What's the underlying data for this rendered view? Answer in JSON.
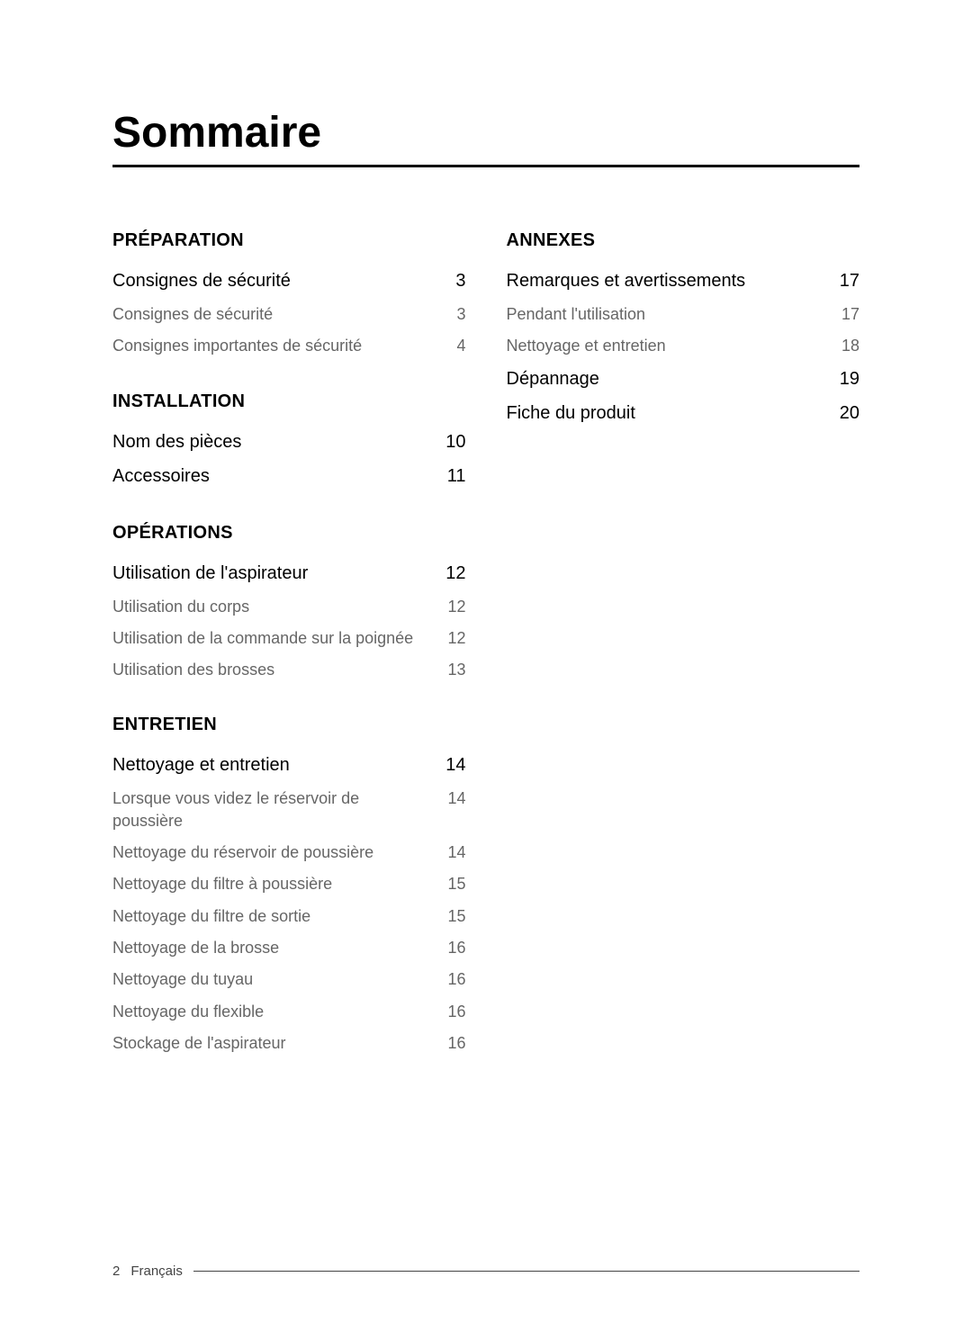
{
  "title": "Sommaire",
  "footer": {
    "pageNumber": "2",
    "language": "Français"
  },
  "colors": {
    "text_primary": "#000000",
    "text_secondary": "#666666",
    "rule": "#000000",
    "background": "#ffffff"
  },
  "typography": {
    "title_fontsize": 48,
    "heading_fontsize": 20,
    "main_entry_fontsize": 20,
    "sub_entry_fontsize": 18,
    "footer_fontsize": 15
  },
  "leftColumn": [
    {
      "heading": "PRÉPARATION",
      "entries": [
        {
          "label": "Consignes de sécurité",
          "page": "3",
          "type": "main"
        },
        {
          "label": "Consignes de sécurité",
          "page": "3",
          "type": "sub"
        },
        {
          "label": "Consignes importantes de sécurité",
          "page": "4",
          "type": "sub"
        }
      ]
    },
    {
      "heading": "INSTALLATION",
      "entries": [
        {
          "label": "Nom des pièces",
          "page": "10",
          "type": "main"
        },
        {
          "label": "Accessoires",
          "page": "11",
          "type": "main"
        }
      ]
    },
    {
      "heading": "OPÉRATIONS",
      "entries": [
        {
          "label": "Utilisation de l'aspirateur",
          "page": "12",
          "type": "main"
        },
        {
          "label": "Utilisation du corps",
          "page": "12",
          "type": "sub"
        },
        {
          "label": "Utilisation de la commande sur la poignée",
          "page": "12",
          "type": "sub"
        },
        {
          "label": "Utilisation des brosses",
          "page": "13",
          "type": "sub"
        }
      ]
    },
    {
      "heading": "ENTRETIEN",
      "entries": [
        {
          "label": "Nettoyage et entretien",
          "page": "14",
          "type": "main"
        },
        {
          "label": "Lorsque vous videz le réservoir de poussière",
          "page": "14",
          "type": "sub"
        },
        {
          "label": "Nettoyage du réservoir de poussière",
          "page": "14",
          "type": "sub"
        },
        {
          "label": "Nettoyage du filtre à poussière",
          "page": "15",
          "type": "sub"
        },
        {
          "label": "Nettoyage du filtre de sortie",
          "page": "15",
          "type": "sub"
        },
        {
          "label": "Nettoyage de la brosse",
          "page": "16",
          "type": "sub"
        },
        {
          "label": "Nettoyage du tuyau",
          "page": "16",
          "type": "sub"
        },
        {
          "label": "Nettoyage du flexible",
          "page": "16",
          "type": "sub"
        },
        {
          "label": "Stockage de l'aspirateur",
          "page": "16",
          "type": "sub"
        }
      ]
    }
  ],
  "rightColumn": [
    {
      "heading": "ANNEXES",
      "entries": [
        {
          "label": "Remarques et avertissements",
          "page": "17",
          "type": "main"
        },
        {
          "label": "Pendant l'utilisation",
          "page": "17",
          "type": "sub"
        },
        {
          "label": "Nettoyage et entretien",
          "page": "18",
          "type": "sub"
        },
        {
          "label": "Dépannage",
          "page": "19",
          "type": "main"
        },
        {
          "label": "Fiche du produit",
          "page": "20",
          "type": "main"
        }
      ]
    }
  ]
}
